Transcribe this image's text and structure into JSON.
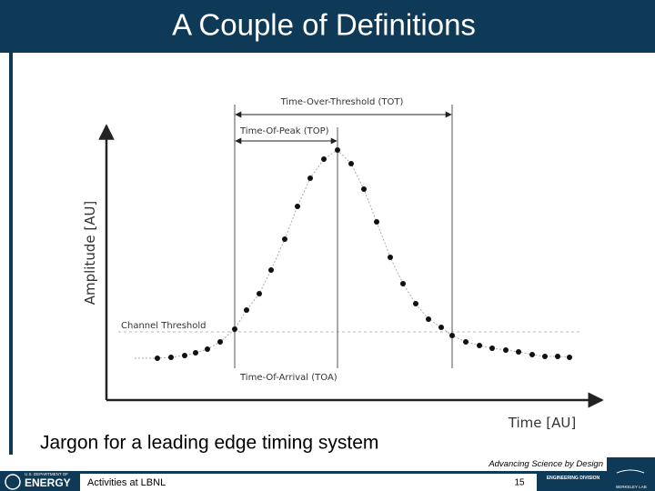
{
  "header": {
    "title": "A Couple of Definitions"
  },
  "diagram": {
    "y_axis_label": "Amplitude [AU]",
    "x_axis_label": "Time [AU]",
    "threshold_label": "Channel Threshold",
    "tot_label": "Time-Over-Threshold (TOT)",
    "top_label": "Time-Of-Peak (TOP)",
    "toa_label": "Time-Of-Arrival (TOA)"
  },
  "caption": "Jargon for a leading edge timing system",
  "footer": {
    "tagline": "Advancing Science by Design",
    "doe_small": "U.S. DEPARTMENT OF",
    "doe": "ENERGY",
    "text": "Activities at LBNL",
    "page": "15",
    "division": "ENGINEERING DIVISION",
    "lab": "BERKELEY LAB"
  }
}
